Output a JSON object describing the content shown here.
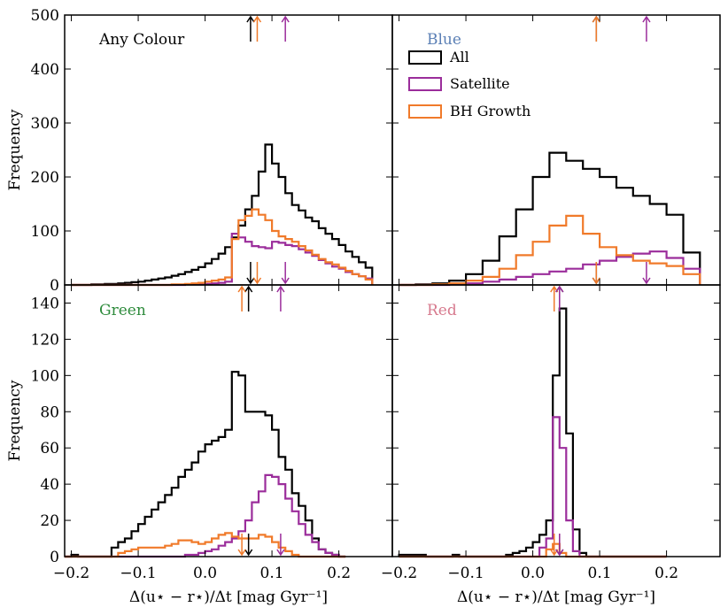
{
  "colors": {
    "all": "#000000",
    "satellite": "#9b2d9b",
    "bh": "#f07a2a",
    "blue_label": "#5a7fb5",
    "green_label": "#2e8b3c",
    "red_label": "#d77a8e"
  },
  "legend": {
    "location": "upper-right of the Blue panel",
    "entries": [
      "All",
      "Satellite",
      "BH Growth"
    ]
  },
  "axis_labels": {
    "x": "Δ(u⋆ − r⋆)/Δt [mag Gyr⁻¹]",
    "y": "Frequency"
  },
  "chart_data": [
    {
      "type": "bar",
      "title": "Any Colour",
      "xlabel": "",
      "ylabel": "Frequency",
      "xlim": [
        -0.21,
        0.28
      ],
      "ylim": [
        0,
        500
      ],
      "yticks": [
        "0",
        "100",
        "200",
        "300",
        "400",
        "500"
      ],
      "bin_edges": [
        -0.2,
        -0.19,
        -0.18,
        -0.17,
        -0.16,
        -0.15,
        -0.14,
        -0.13,
        -0.12,
        -0.11,
        -0.1,
        -0.09,
        -0.08,
        -0.07,
        -0.06,
        -0.05,
        -0.04,
        -0.03,
        -0.02,
        -0.01,
        0.0,
        0.01,
        0.02,
        0.03,
        0.04,
        0.05,
        0.06,
        0.07,
        0.08,
        0.09,
        0.1,
        0.11,
        0.12,
        0.13,
        0.14,
        0.15,
        0.16,
        0.17,
        0.18,
        0.19,
        0.2,
        0.21,
        0.22,
        0.23,
        0.24,
        0.25
      ],
      "series": [
        {
          "name": "All",
          "values": [
            0,
            0,
            0,
            1,
            1,
            2,
            2,
            3,
            4,
            5,
            6,
            8,
            10,
            12,
            14,
            17,
            20,
            24,
            28,
            33,
            40,
            48,
            58,
            70,
            88,
            110,
            140,
            165,
            210,
            260,
            225,
            200,
            170,
            148,
            138,
            125,
            118,
            105,
            95,
            85,
            74,
            62,
            52,
            42,
            32
          ]
        },
        {
          "name": "Satellite",
          "values": [
            0,
            0,
            0,
            0,
            0,
            0,
            0,
            0,
            0,
            0,
            0,
            0,
            0,
            0,
            0,
            0,
            0,
            1,
            1,
            2,
            2,
            3,
            4,
            6,
            95,
            88,
            80,
            72,
            70,
            68,
            80,
            78,
            74,
            72,
            66,
            60,
            54,
            46,
            40,
            34,
            30,
            24,
            20,
            16,
            12
          ]
        },
        {
          "name": "BH Growth",
          "values": [
            0,
            0,
            0,
            0,
            0,
            0,
            0,
            0,
            0,
            0,
            0,
            0,
            0,
            0,
            0,
            1,
            1,
            2,
            3,
            4,
            6,
            8,
            10,
            14,
            85,
            120,
            128,
            140,
            130,
            120,
            100,
            90,
            85,
            80,
            72,
            64,
            56,
            48,
            42,
            38,
            32,
            26,
            20,
            16,
            10
          ]
        }
      ],
      "median_arrows": {
        "All": 0.068,
        "BH Growth": 0.078,
        "Satellite": 0.12
      }
    },
    {
      "type": "bar",
      "title": "Blue",
      "xlabel": "",
      "ylabel": "",
      "xlim": [
        -0.21,
        0.28
      ],
      "ylim": [
        0,
        500
      ],
      "bin_edges": [
        -0.2,
        -0.175,
        -0.15,
        -0.125,
        -0.1,
        -0.075,
        -0.05,
        -0.025,
        0.0,
        0.025,
        0.05,
        0.075,
        0.1,
        0.125,
        0.15,
        0.175,
        0.2,
        0.225,
        0.25
      ],
      "series": [
        {
          "name": "All",
          "values": [
            0,
            1,
            3,
            8,
            20,
            45,
            90,
            140,
            200,
            245,
            230,
            215,
            200,
            180,
            165,
            150,
            130,
            60
          ]
        },
        {
          "name": "Satellite",
          "values": [
            0,
            0,
            0,
            1,
            3,
            6,
            10,
            15,
            20,
            25,
            30,
            38,
            45,
            52,
            58,
            62,
            50,
            30
          ]
        },
        {
          "name": "BH Growth",
          "values": [
            0,
            0,
            1,
            3,
            8,
            15,
            30,
            55,
            80,
            110,
            128,
            95,
            70,
            55,
            45,
            40,
            35,
            20
          ]
        }
      ],
      "median_arrows": {
        "All": 0.095,
        "BH Growth": 0.095,
        "Satellite": 0.17
      }
    },
    {
      "type": "bar",
      "title": "Green",
      "xlabel": "Δ(u⋆ − r⋆)/Δt [mag Gyr⁻¹]",
      "ylabel": "Frequency",
      "xlim": [
        -0.21,
        0.28
      ],
      "ylim": [
        0,
        150
      ],
      "yticks": [
        "0",
        "20",
        "40",
        "60",
        "80",
        "100",
        "120",
        "140"
      ],
      "xticks": [
        "−0.2",
        "−0.1",
        "0.0",
        "0.1",
        "0.2"
      ],
      "bin_edges": [
        -0.21,
        -0.2,
        -0.19,
        -0.18,
        -0.17,
        -0.16,
        -0.15,
        -0.14,
        -0.13,
        -0.12,
        -0.11,
        -0.1,
        -0.09,
        -0.08,
        -0.07,
        -0.06,
        -0.05,
        -0.04,
        -0.03,
        -0.02,
        -0.01,
        0.0,
        0.01,
        0.02,
        0.03,
        0.04,
        0.05,
        0.06,
        0.07,
        0.08,
        0.09,
        0.1,
        0.11,
        0.12,
        0.13,
        0.14,
        0.15,
        0.16,
        0.17,
        0.18,
        0.19,
        0.2,
        0.21,
        0.22
      ],
      "series": [
        {
          "name": "All",
          "values": [
            0,
            1,
            0,
            0,
            0,
            0,
            0,
            5,
            8,
            10,
            14,
            18,
            22,
            26,
            30,
            34,
            38,
            44,
            48,
            52,
            58,
            62,
            64,
            66,
            70,
            102,
            100,
            80,
            80,
            80,
            78,
            70,
            55,
            48,
            35,
            28,
            20,
            10,
            4,
            2,
            1,
            0
          ]
        },
        {
          "name": "Satellite",
          "values": [
            0,
            0,
            0,
            0,
            0,
            0,
            0,
            0,
            0,
            0,
            0,
            0,
            0,
            0,
            0,
            0,
            0,
            0,
            1,
            1,
            2,
            3,
            4,
            6,
            8,
            10,
            14,
            20,
            30,
            36,
            45,
            44,
            40,
            32,
            25,
            18,
            12,
            8,
            4,
            2,
            1,
            0
          ]
        },
        {
          "name": "BH Growth",
          "values": [
            0,
            0,
            0,
            0,
            0,
            0,
            0,
            0,
            2,
            3,
            4,
            5,
            5,
            5,
            5,
            6,
            7,
            9,
            9,
            8,
            7,
            8,
            10,
            12,
            13,
            11,
            10,
            10,
            10,
            12,
            11,
            8,
            5,
            3,
            1,
            0,
            0,
            0,
            0,
            0,
            0,
            0
          ]
        }
      ],
      "median_arrows": {
        "All": 0.065,
        "BH Growth": 0.055,
        "Satellite": 0.113
      }
    },
    {
      "type": "bar",
      "title": "Red",
      "xlabel": "Δ(u⋆ − r⋆)/Δt [mag Gyr⁻¹]",
      "ylabel": "",
      "xlim": [
        -0.21,
        0.28
      ],
      "ylim": [
        0,
        150
      ],
      "xticks": [
        "−0.2",
        "−0.1",
        "0.0",
        "0.1",
        "0.2"
      ],
      "bin_edges": [
        -0.2,
        -0.19,
        -0.18,
        -0.17,
        -0.16,
        -0.15,
        -0.14,
        -0.13,
        -0.12,
        -0.11,
        -0.1,
        -0.09,
        -0.08,
        -0.07,
        -0.06,
        -0.05,
        -0.04,
        -0.03,
        -0.02,
        -0.01,
        0.0,
        0.01,
        0.02,
        0.03,
        0.04,
        0.05,
        0.06,
        0.07,
        0.08,
        0.09,
        0.1,
        0.11,
        0.12,
        0.13,
        0.14,
        0.15,
        0.16,
        0.17,
        0.18,
        0.19,
        0.2
      ],
      "series": [
        {
          "name": "All",
          "values": [
            1,
            1,
            1,
            1,
            0,
            0,
            0,
            0,
            1,
            0,
            0,
            0,
            0,
            0,
            0,
            0,
            1,
            2,
            3,
            5,
            8,
            12,
            20,
            100,
            137,
            68,
            15,
            2,
            0,
            0,
            0,
            0,
            0,
            0,
            0,
            0,
            0,
            0,
            0,
            0
          ]
        },
        {
          "name": "Satellite",
          "values": [
            0,
            0,
            0,
            0,
            0,
            0,
            0,
            0,
            0,
            0,
            0,
            0,
            0,
            0,
            0,
            0,
            0,
            0,
            0,
            0,
            0,
            5,
            10,
            77,
            60,
            20,
            3,
            0,
            0,
            0,
            0,
            0,
            0,
            0,
            0,
            0,
            0,
            0,
            0,
            0
          ]
        },
        {
          "name": "BH Growth",
          "values": [
            0,
            0,
            0,
            0,
            0,
            0,
            0,
            0,
            0,
            0,
            0,
            0,
            0,
            0,
            0,
            0,
            0,
            0,
            0,
            0,
            0,
            0,
            4,
            7,
            2,
            0,
            0,
            0,
            0,
            0,
            0,
            0,
            0,
            0,
            0,
            0,
            0,
            0,
            0,
            0
          ]
        }
      ],
      "median_arrows": {
        "All": 0.04,
        "BH Growth": 0.032,
        "Satellite": 0.04
      }
    }
  ]
}
